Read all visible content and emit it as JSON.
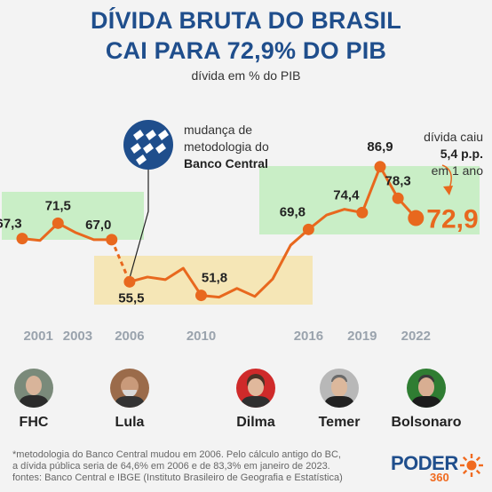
{
  "header": {
    "title_line1": "DÍVIDA BRUTA DO BRASIL",
    "title_line2": "CAI PARA 72,9% DO PIB",
    "subtitle": "dívida em % do PIB"
  },
  "annotations": {
    "methodology_line1": "mudança de",
    "methodology_line2": "metodologia do",
    "methodology_line3": "Banco Central",
    "drop_line1": "dívida caiu",
    "drop_line2": "5,4 p.p.",
    "drop_line3": "em 1 ano"
  },
  "chart_data": {
    "type": "line",
    "ylim": [
      50,
      90
    ],
    "series_old_method": {
      "x": [
        2000,
        2001,
        2002,
        2003,
        2004,
        2005
      ],
      "values": [
        67.3,
        66.8,
        71.5,
        68.9,
        67.0,
        67.0
      ],
      "labels": {
        "2000": "67,3",
        "2002": "71,5",
        "2005": "67,0"
      }
    },
    "series_new_method": {
      "x": [
        2006,
        2007,
        2008,
        2009,
        2010,
        2011,
        2012,
        2013,
        2014,
        2015,
        2016,
        2017,
        2018,
        2019,
        2020,
        2021,
        2022
      ],
      "values": [
        55.5,
        56.8,
        56.1,
        59.2,
        51.8,
        51.3,
        53.7,
        51.5,
        56.3,
        65.5,
        69.8,
        73.7,
        75.3,
        74.4,
        86.9,
        78.3,
        72.9
      ],
      "labels": {
        "2006": "55,5",
        "2010": "51,8",
        "2016": "69,8",
        "2019": "74,4",
        "2020": "86,9",
        "2021": "78,3",
        "2022": "72,9"
      }
    },
    "x_tick_labels": [
      "2001",
      "2003",
      "2006",
      "2010",
      "2016",
      "2019",
      "2022"
    ],
    "presidents": [
      "FHC",
      "Lula",
      "Dilma",
      "Temer",
      "Bolsonaro"
    ],
    "colors": {
      "line": "#e8681e",
      "band_green": "#c9eec6",
      "band_yellow": "#f5e6b6",
      "title": "#1f4e8c",
      "axis_label": "#9aa3ad"
    }
  },
  "footnote": {
    "line1": "*metodologia do Banco Central mudou em 2006. Pelo cálculo antigo do BC,",
    "line2": "a dívida pública seria de 64,6% em 2006 e de 83,3% em janeiro de 2023.",
    "line3": "fontes: Banco Central e IBGE (Instituto Brasileiro de Geografia e Estatística)"
  },
  "logo": {
    "word": "PODER",
    "number": "360"
  }
}
